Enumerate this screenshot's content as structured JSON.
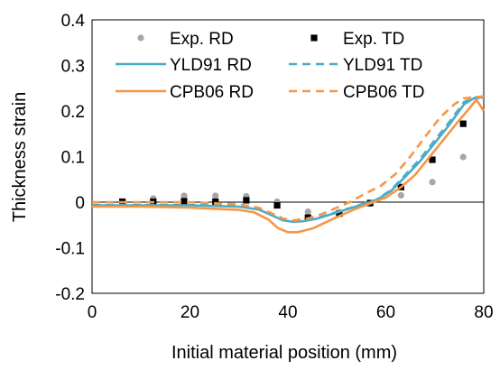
{
  "chart_data": {
    "type": "line",
    "title": "",
    "xlabel": "Initial material position (mm)",
    "ylabel": "Thickness strain",
    "xlim": [
      0,
      80
    ],
    "ylim": [
      -0.2,
      0.4
    ],
    "xticks": [
      0,
      20,
      40,
      60,
      80
    ],
    "yticks": [
      -0.2,
      -0.1,
      0,
      0.1,
      0.2,
      0.3,
      0.4
    ],
    "x_tick_labels": [
      "0",
      "20",
      "40",
      "60",
      "80"
    ],
    "y_tick_labels": [
      "-0.2",
      "-0.1",
      "0",
      "0.1",
      "0.2",
      "0.3",
      "0.4"
    ],
    "zero_line": true,
    "grid": false,
    "legend": "top, two columns",
    "series": [
      {
        "name": "Exp. RD",
        "kind": "scatter",
        "marker": "circle",
        "color": "#a6a6a6",
        "x": [
          6.2,
          12.5,
          18.8,
          25.2,
          31.5,
          37.8,
          44.1,
          50.5,
          56.8,
          63.1,
          69.5,
          75.8
        ],
        "y": [
          0.0,
          0.008,
          0.014,
          0.014,
          0.013,
          0.001,
          -0.021,
          -0.022,
          -0.003,
          0.015,
          0.044,
          0.099
        ]
      },
      {
        "name": "Exp. TD",
        "kind": "scatter",
        "marker": "square",
        "color": "#000000",
        "x": [
          6.2,
          12.5,
          18.8,
          25.2,
          31.5,
          37.8,
          44.1,
          50.5,
          56.8,
          63.1,
          69.5,
          75.8
        ],
        "y": [
          0.001,
          0.001,
          0.002,
          0.001,
          0.004,
          -0.007,
          -0.034,
          -0.025,
          -0.002,
          0.033,
          0.093,
          0.172
        ]
      },
      {
        "name": "YLD91 RD",
        "kind": "line",
        "dash": "solid",
        "color": "#4bacc6",
        "x": [
          0,
          10,
          20,
          30,
          34,
          37,
          39,
          41,
          43,
          46,
          49,
          52,
          55,
          58,
          61,
          64,
          67,
          70,
          73,
          76,
          78,
          80
        ],
        "y": [
          -0.007,
          -0.007,
          -0.007,
          -0.01,
          -0.016,
          -0.03,
          -0.04,
          -0.043,
          -0.042,
          -0.036,
          -0.026,
          -0.016,
          -0.006,
          0.004,
          0.024,
          0.056,
          0.09,
          0.13,
          0.17,
          0.215,
          0.228,
          0.23
        ]
      },
      {
        "name": "YLD91 TD",
        "kind": "line",
        "dash": "dashed",
        "color": "#4bacc6",
        "x": [
          0,
          10,
          20,
          30,
          34,
          37,
          39,
          41,
          43,
          46,
          49,
          52,
          55,
          58,
          61,
          64,
          67,
          70,
          73,
          76,
          78,
          80
        ],
        "y": [
          -0.006,
          -0.006,
          -0.006,
          -0.009,
          -0.015,
          -0.029,
          -0.039,
          -0.042,
          -0.041,
          -0.035,
          -0.025,
          -0.015,
          -0.005,
          0.005,
          0.026,
          0.06,
          0.095,
          0.136,
          0.176,
          0.22,
          0.229,
          0.232
        ]
      },
      {
        "name": "CPB06 RD",
        "kind": "line",
        "dash": "solid",
        "color": "#f79646",
        "x": [
          0,
          10,
          20,
          30,
          33,
          36,
          38,
          40,
          42,
          45,
          48,
          51,
          54,
          57,
          60,
          63,
          66,
          69,
          72,
          75,
          77,
          78.5,
          80
        ],
        "y": [
          -0.01,
          -0.01,
          -0.012,
          -0.017,
          -0.022,
          -0.038,
          -0.057,
          -0.066,
          -0.066,
          -0.058,
          -0.043,
          -0.028,
          -0.014,
          -0.002,
          0.01,
          0.032,
          0.06,
          0.1,
          0.14,
          0.18,
          0.205,
          0.225,
          0.2
        ]
      },
      {
        "name": "CPB06 TD",
        "kind": "line",
        "dash": "dashed",
        "color": "#f79646",
        "x": [
          0,
          10,
          20,
          30,
          34,
          37,
          39,
          41,
          44,
          47,
          50,
          53,
          56,
          59,
          62,
          65,
          68,
          71,
          74,
          76,
          78,
          80
        ],
        "y": [
          0.0,
          0.0,
          0.0,
          -0.005,
          -0.012,
          -0.026,
          -0.036,
          -0.04,
          -0.036,
          -0.026,
          -0.012,
          0.002,
          0.02,
          0.036,
          0.062,
          0.1,
          0.143,
          0.185,
          0.215,
          0.228,
          0.23,
          0.232
        ]
      }
    ]
  }
}
